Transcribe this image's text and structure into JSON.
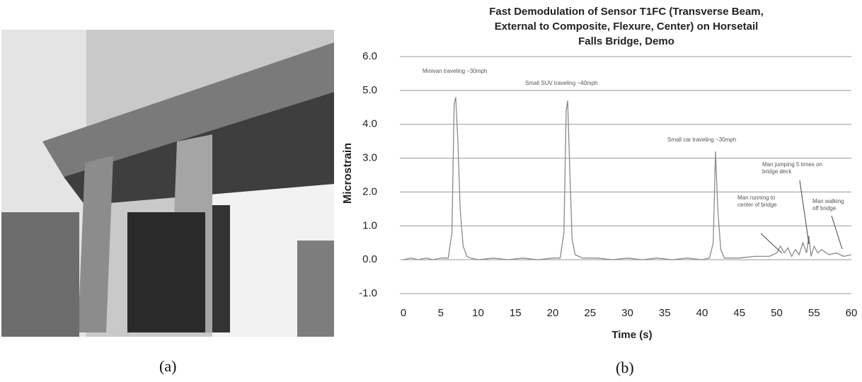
{
  "photo": {
    "caption": "(a)"
  },
  "chart_data": {
    "type": "line",
    "title": "Fast Demodulation of Sensor T1FC (Transverse Beam, External to Composite, Flexure, Center) on Horsetail Falls Bridge, Demo",
    "xlabel": "Time (s)",
    "ylabel": "Microstrain",
    "caption": "(b)",
    "x": [
      0,
      1,
      2,
      3,
      4,
      5,
      6,
      6.5,
      6.8,
      7.0,
      7.3,
      7.6,
      8.0,
      8.5,
      9,
      10,
      12,
      14,
      16,
      18,
      20,
      21,
      21.5,
      21.8,
      22.0,
      22.3,
      22.6,
      23,
      24,
      26,
      28,
      30,
      32,
      34,
      36,
      38,
      40,
      41,
      41.5,
      41.8,
      42.1,
      42.5,
      43,
      45,
      47,
      49,
      50,
      50.5,
      51,
      51.5,
      52,
      52.5,
      53,
      53.5,
      54,
      54.3,
      54.6,
      55,
      55.5,
      56,
      57,
      58,
      59,
      60
    ],
    "values": [
      0,
      0.05,
      0,
      0.05,
      0,
      0.05,
      0.05,
      0.8,
      4.6,
      4.8,
      3.5,
      1.5,
      0.4,
      0.1,
      0.05,
      0,
      0.05,
      0,
      0.05,
      0,
      0.05,
      0.05,
      0.8,
      4.4,
      4.7,
      2.5,
      0.6,
      0.15,
      0.05,
      0.05,
      0,
      0.05,
      0,
      0.05,
      0,
      0.05,
      0,
      0.05,
      0.5,
      3.2,
      1.5,
      0.3,
      0.05,
      0.05,
      0.1,
      0.1,
      0.2,
      0.4,
      0.2,
      0.35,
      0.1,
      0.3,
      0.15,
      0.5,
      0.2,
      0.7,
      0.1,
      0.4,
      0.2,
      0.3,
      0.15,
      0.2,
      0.1,
      0.15
    ],
    "color": "#8a8a8a",
    "xlim": [
      0,
      60
    ],
    "xticks": [
      0,
      5,
      10,
      15,
      20,
      25,
      30,
      35,
      40,
      45,
      50,
      55,
      60
    ],
    "ylim": [
      -1,
      6
    ],
    "yticks": [
      {
        "value": -1,
        "label": "-1.0"
      },
      {
        "value": 0,
        "label": "0.0"
      },
      {
        "value": 1,
        "label": "1.0"
      },
      {
        "value": 2,
        "label": "2.0"
      },
      {
        "value": 3,
        "label": "3.0"
      },
      {
        "value": 4,
        "label": "4.0"
      },
      {
        "value": 5,
        "label": "5.0"
      },
      {
        "value": 6,
        "label": "6.0"
      }
    ],
    "grid": true,
    "annotations": [
      "Minivan traveling ~30mph",
      "Small SUV traveling ~40mph",
      "Small car traveling ~30mph",
      "Man running to center of bridge",
      "Man jumping 5 times on bridge deck",
      "Man walking off bridge"
    ]
  }
}
